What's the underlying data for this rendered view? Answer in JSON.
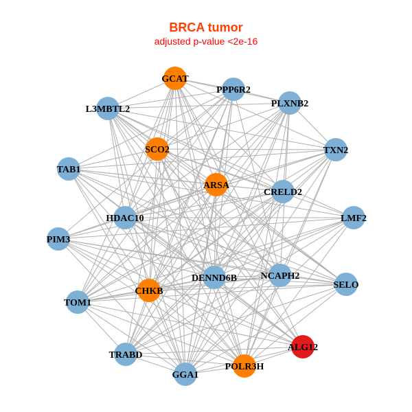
{
  "title": "BRCA tumor",
  "subtitle": "adjusted p-value <2e-16",
  "colors": {
    "blue": "#7eb0d5",
    "orange": "#ff7f00",
    "red": "#e31a1c",
    "edge": "#b0b0b0"
  },
  "nodes": [
    {
      "id": "GCAT",
      "color": "orange"
    },
    {
      "id": "PPP6R2",
      "color": "blue"
    },
    {
      "id": "PLXNB2",
      "color": "blue"
    },
    {
      "id": "L3MBTL2",
      "color": "blue"
    },
    {
      "id": "SCO2",
      "color": "orange"
    },
    {
      "id": "TXN2",
      "color": "blue"
    },
    {
      "id": "TAB1",
      "color": "blue"
    },
    {
      "id": "ARSA",
      "color": "orange"
    },
    {
      "id": "CRELD2",
      "color": "blue"
    },
    {
      "id": "HDAC10",
      "color": "blue"
    },
    {
      "id": "LMF2",
      "color": "blue"
    },
    {
      "id": "PIM3",
      "color": "blue"
    },
    {
      "id": "DENND6B",
      "color": "blue"
    },
    {
      "id": "NCAPH2",
      "color": "blue"
    },
    {
      "id": "SELO",
      "color": "blue"
    },
    {
      "id": "CHKB",
      "color": "orange"
    },
    {
      "id": "TOM1",
      "color": "blue"
    },
    {
      "id": "ALG12",
      "color": "red"
    },
    {
      "id": "TRABD",
      "color": "blue"
    },
    {
      "id": "POLR3H",
      "color": "orange"
    },
    {
      "id": "GGA1",
      "color": "blue"
    }
  ],
  "edges": [
    [
      0,
      1
    ],
    [
      0,
      2
    ],
    [
      0,
      3
    ],
    [
      0,
      4
    ],
    [
      0,
      5
    ],
    [
      0,
      7
    ],
    [
      0,
      8
    ],
    [
      0,
      9
    ],
    [
      0,
      12
    ],
    [
      0,
      13
    ],
    [
      0,
      15
    ],
    [
      0,
      18
    ],
    [
      0,
      19
    ],
    [
      0,
      20
    ],
    [
      0,
      17
    ],
    [
      0,
      16
    ],
    [
      1,
      2
    ],
    [
      1,
      3
    ],
    [
      1,
      4
    ],
    [
      1,
      6
    ],
    [
      1,
      7
    ],
    [
      1,
      9
    ],
    [
      1,
      11
    ],
    [
      1,
      12
    ],
    [
      1,
      13
    ],
    [
      1,
      15
    ],
    [
      1,
      16
    ],
    [
      1,
      18
    ],
    [
      1,
      20
    ],
    [
      2,
      3
    ],
    [
      2,
      4
    ],
    [
      2,
      5
    ],
    [
      2,
      7
    ],
    [
      2,
      8
    ],
    [
      2,
      9
    ],
    [
      2,
      12
    ],
    [
      2,
      13
    ],
    [
      2,
      15
    ],
    [
      2,
      16
    ],
    [
      2,
      18
    ],
    [
      2,
      19
    ],
    [
      2,
      20
    ],
    [
      3,
      4
    ],
    [
      3,
      5
    ],
    [
      3,
      7
    ],
    [
      3,
      8
    ],
    [
      3,
      9
    ],
    [
      3,
      10
    ],
    [
      3,
      12
    ],
    [
      3,
      13
    ],
    [
      3,
      14
    ],
    [
      3,
      15
    ],
    [
      3,
      17
    ],
    [
      3,
      19
    ],
    [
      3,
      20
    ],
    [
      4,
      5
    ],
    [
      4,
      6
    ],
    [
      4,
      8
    ],
    [
      4,
      9
    ],
    [
      4,
      10
    ],
    [
      4,
      12
    ],
    [
      4,
      13
    ],
    [
      4,
      14
    ],
    [
      4,
      15
    ],
    [
      4,
      17
    ],
    [
      4,
      19
    ],
    [
      4,
      20
    ],
    [
      5,
      6
    ],
    [
      5,
      7
    ],
    [
      5,
      9
    ],
    [
      5,
      11
    ],
    [
      5,
      12
    ],
    [
      5,
      13
    ],
    [
      5,
      15
    ],
    [
      5,
      16
    ],
    [
      5,
      18
    ],
    [
      5,
      19
    ],
    [
      5,
      20
    ],
    [
      6,
      7
    ],
    [
      6,
      8
    ],
    [
      6,
      10
    ],
    [
      6,
      12
    ],
    [
      6,
      13
    ],
    [
      6,
      14
    ],
    [
      6,
      15
    ],
    [
      6,
      17
    ],
    [
      6,
      19
    ],
    [
      6,
      20
    ],
    [
      7,
      8
    ],
    [
      7,
      9
    ],
    [
      7,
      11
    ],
    [
      7,
      12
    ],
    [
      7,
      14
    ],
    [
      7,
      15
    ],
    [
      7,
      16
    ],
    [
      7,
      18
    ],
    [
      7,
      20
    ],
    [
      8,
      9
    ],
    [
      8,
      11
    ],
    [
      8,
      12
    ],
    [
      8,
      15
    ],
    [
      8,
      16
    ],
    [
      8,
      18
    ],
    [
      8,
      19
    ],
    [
      8,
      20
    ],
    [
      9,
      10
    ],
    [
      9,
      12
    ],
    [
      9,
      13
    ],
    [
      9,
      14
    ],
    [
      9,
      16
    ],
    [
      9,
      17
    ],
    [
      9,
      19
    ],
    [
      9,
      20
    ],
    [
      10,
      11
    ],
    [
      10,
      12
    ],
    [
      10,
      15
    ],
    [
      10,
      16
    ],
    [
      10,
      18
    ],
    [
      10,
      19
    ],
    [
      10,
      20
    ],
    [
      11,
      12
    ],
    [
      11,
      13
    ],
    [
      11,
      14
    ],
    [
      11,
      15
    ],
    [
      11,
      17
    ],
    [
      11,
      19
    ],
    [
      11,
      20
    ],
    [
      12,
      13
    ],
    [
      12,
      14
    ],
    [
      12,
      15
    ],
    [
      12,
      16
    ],
    [
      12,
      17
    ],
    [
      12,
      18
    ],
    [
      12,
      19
    ],
    [
      12,
      20
    ],
    [
      13,
      14
    ],
    [
      13,
      15
    ],
    [
      13,
      16
    ],
    [
      13,
      18
    ],
    [
      13,
      19
    ],
    [
      13,
      20
    ],
    [
      14,
      15
    ],
    [
      14,
      16
    ],
    [
      14,
      18
    ],
    [
      14,
      19
    ],
    [
      14,
      20
    ],
    [
      15,
      16
    ],
    [
      15,
      17
    ],
    [
      15,
      18
    ],
    [
      15,
      19
    ],
    [
      15,
      20
    ],
    [
      16,
      17
    ],
    [
      16,
      18
    ],
    [
      16,
      19
    ],
    [
      16,
      20
    ],
    [
      17,
      18
    ],
    [
      17,
      19
    ],
    [
      17,
      20
    ],
    [
      18,
      19
    ],
    [
      18,
      20
    ],
    [
      19,
      20
    ]
  ]
}
